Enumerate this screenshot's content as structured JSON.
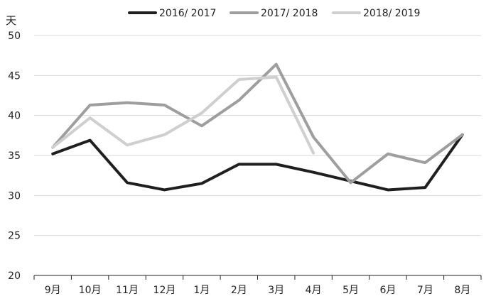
{
  "chart_data": {
    "type": "line",
    "title": "",
    "xlabel": "",
    "ylabel": "天",
    "categories": [
      "9月",
      "10月",
      "11月",
      "12月",
      "1月",
      "2月",
      "3月",
      "4月",
      "5月",
      "6月",
      "7月",
      "8月"
    ],
    "y_ticks": [
      "20",
      "25",
      "30",
      "35",
      "40",
      "45",
      "50"
    ],
    "ylim": [
      20,
      50
    ],
    "grid": true,
    "legend_position": "top",
    "series": [
      {
        "name": "2016/ 2017",
        "color": "#1f1f1f",
        "values": [
          35.2,
          36.9,
          31.6,
          30.7,
          31.5,
          33.9,
          33.9,
          32.9,
          31.8,
          30.7,
          31.0,
          37.6
        ]
      },
      {
        "name": "2017/ 2018",
        "color": "#9e9e9e",
        "values": [
          36.0,
          41.3,
          41.6,
          41.3,
          38.7,
          41.9,
          46.4,
          37.3,
          31.6,
          35.2,
          34.1,
          37.6
        ]
      },
      {
        "name": "2018/ 2019",
        "color": "#cfcfcf",
        "values": [
          36.0,
          39.7,
          36.3,
          37.6,
          40.3,
          44.5,
          44.8,
          35.3,
          null,
          null,
          null,
          null
        ]
      }
    ]
  }
}
